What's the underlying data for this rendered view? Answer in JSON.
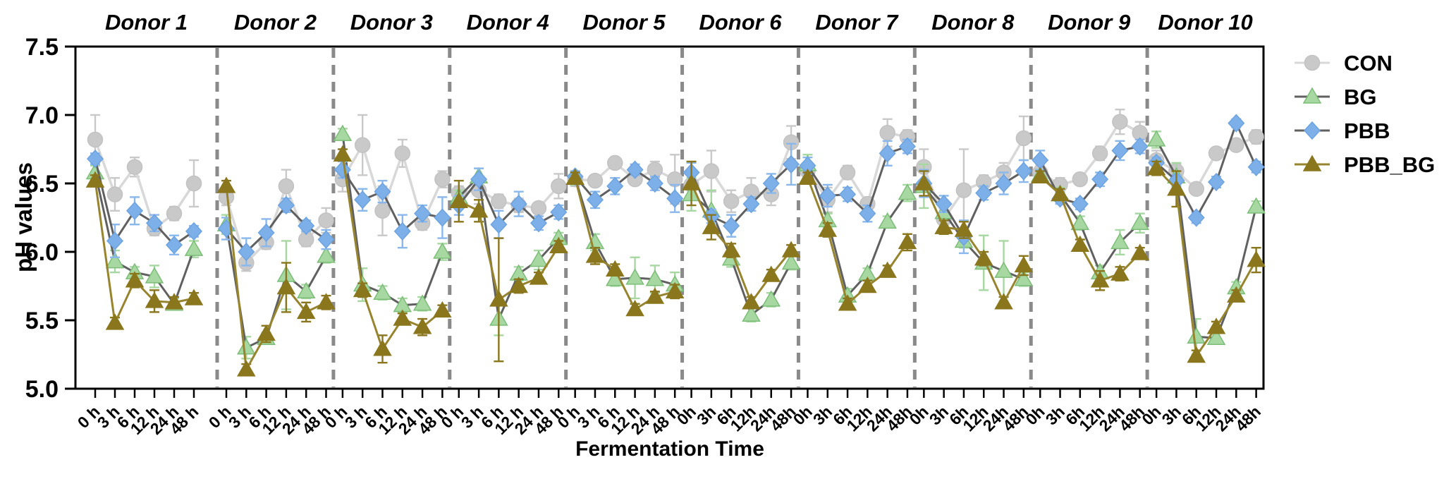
{
  "chart_data": {
    "type": "line",
    "title": "",
    "xlabel": "Fermentation Time",
    "ylabel": "pH values",
    "ylim": [
      5.0,
      7.5
    ],
    "y_ticks": [
      "7.5",
      "7.0",
      "6.5",
      "6.0",
      "5.5",
      "5.0"
    ],
    "grid": false,
    "panel_divider_style": "dashed",
    "legend": {
      "position": "right-top",
      "entries": [
        {
          "label": "CON",
          "marker": "circle",
          "marker_color": "#c9c9c9",
          "marker_edge": "#c2c2c2",
          "line_color": "#d8d8d8",
          "error_color": "#c9c9c9"
        },
        {
          "label": "BG",
          "marker": "triangle",
          "marker_color": "#a7d8a2",
          "marker_edge": "#7cbd78",
          "line_color": "#606060",
          "error_color": "#a7d8a2"
        },
        {
          "label": "PBB",
          "marker": "diamond",
          "marker_color": "#7db0e8",
          "marker_edge": "#6da3e0",
          "line_color": "#606060",
          "error_color": "#8ab8ec"
        },
        {
          "label": "PBB_BG",
          "marker": "triangle",
          "marker_color": "#8a761c",
          "marker_edge": "#8a761c",
          "line_color": "#97842e",
          "error_color": "#8a761c"
        }
      ]
    },
    "panels": [
      {
        "title": "Donor 1",
        "x_labels": [
          "0 h",
          "3 h",
          "6 h",
          "12 h",
          "24 h",
          "48 h"
        ],
        "series": [
          {
            "name": "CON",
            "values": [
              6.82,
              6.42,
              6.62,
              6.17,
              6.28,
              6.5
            ],
            "errors": [
              0.18,
              0.12,
              0.07,
              0.05,
              0.05,
              0.17
            ]
          },
          {
            "name": "BG",
            "values": [
              6.58,
              5.93,
              5.85,
              5.82,
              5.62,
              6.02
            ],
            "errors": [
              0.05,
              0.08,
              0.04,
              0.08,
              0.04,
              0.06
            ]
          },
          {
            "name": "PBB",
            "values": [
              6.68,
              6.08,
              6.3,
              6.21,
              6.05,
              6.15
            ],
            "errors": [
              0.04,
              0.12,
              0.1,
              0.06,
              0.07,
              0.04
            ]
          },
          {
            "name": "PBB_BG",
            "values": [
              6.52,
              5.48,
              5.79,
              5.64,
              5.63,
              5.66
            ],
            "errors": [
              0.04,
              0.04,
              0.05,
              0.08,
              0.04,
              0.04
            ]
          }
        ]
      },
      {
        "title": "Donor 2",
        "x_labels": [
          "0 h",
          "3 h",
          "6 h",
          "12 h",
          "24 h",
          "48 h"
        ],
        "series": [
          {
            "name": "CON",
            "values": [
              6.4,
              5.92,
              6.07,
              6.48,
              6.09,
              6.23
            ],
            "errors": [
              0.06,
              0.06,
              0.05,
              0.12,
              0.05,
              0.09
            ]
          },
          {
            "name": "BG",
            "values": [
              6.2,
              5.3,
              5.37,
              5.83,
              5.71,
              5.97
            ],
            "errors": [
              0.07,
              0.08,
              0.04,
              0.25,
              0.05,
              0.05
            ]
          },
          {
            "name": "PBB",
            "values": [
              6.17,
              6.0,
              6.14,
              6.34,
              6.19,
              6.09
            ],
            "errors": [
              0.08,
              0.1,
              0.1,
              0.05,
              0.04,
              0.07
            ]
          },
          {
            "name": "PBB_BG",
            "values": [
              6.48,
              5.14,
              5.4,
              5.74,
              5.56,
              5.63
            ],
            "errors": [
              0.04,
              0.04,
              0.06,
              0.18,
              0.07,
              0.05
            ]
          }
        ]
      },
      {
        "title": "Donor 3",
        "x_labels": [
          "0 h",
          "3 h",
          "6 h",
          "12 h",
          "24 h",
          "48 h"
        ],
        "series": [
          {
            "name": "CON",
            "values": [
              6.53,
              6.78,
              6.3,
              6.72,
              6.21,
              6.53
            ],
            "errors": [
              0.09,
              0.22,
              0.18,
              0.1,
              0.05,
              0.06
            ]
          },
          {
            "name": "BG",
            "values": [
              6.86,
              5.76,
              5.7,
              5.61,
              5.62,
              6.0
            ],
            "errors": [
              0.04,
              0.12,
              0.05,
              0.05,
              0.05,
              0.06
            ]
          },
          {
            "name": "PBB",
            "values": [
              6.6,
              6.38,
              6.44,
              6.15,
              6.28,
              6.25
            ],
            "errors": [
              0.06,
              0.08,
              0.08,
              0.12,
              0.06,
              0.15
            ]
          },
          {
            "name": "PBB_BG",
            "values": [
              6.71,
              5.72,
              5.29,
              5.51,
              5.45,
              5.57
            ],
            "errors": [
              0.04,
              0.05,
              0.1,
              0.04,
              0.06,
              0.04
            ]
          }
        ]
      },
      {
        "title": "Donor 4",
        "x_labels": [
          "0 h",
          "3 h",
          "6 h",
          "12 h",
          "24 h",
          "48 h"
        ],
        "series": [
          {
            "name": "CON",
            "values": [
              6.43,
              6.45,
              6.37,
              6.34,
              6.32,
              6.48
            ],
            "errors": [
              0.05,
              0.1,
              0.05,
              0.05,
              0.04,
              0.09
            ]
          },
          {
            "name": "BG",
            "values": [
              6.4,
              6.55,
              5.51,
              5.84,
              5.94,
              6.1
            ],
            "errors": [
              0.05,
              0.06,
              0.12,
              0.05,
              0.07,
              0.04
            ]
          },
          {
            "name": "PBB",
            "values": [
              6.34,
              6.53,
              6.2,
              6.35,
              6.21,
              6.29
            ],
            "errors": [
              0.07,
              0.08,
              0.1,
              0.09,
              0.05,
              0.05
            ]
          },
          {
            "name": "PBB_BG",
            "values": [
              6.37,
              6.3,
              5.65,
              5.75,
              5.81,
              6.04
            ],
            "errors": [
              0.15,
              0.08,
              0.45,
              0.05,
              0.04,
              0.04
            ]
          }
        ]
      },
      {
        "title": "Donor 5",
        "x_labels": [
          "0 h",
          "3 h",
          "6 h",
          "12 h",
          "24 h",
          "48 h"
        ],
        "series": [
          {
            "name": "CON",
            "values": [
              6.53,
              6.52,
              6.65,
              6.53,
              6.6,
              6.53
            ],
            "errors": [
              0.05,
              0.04,
              0.04,
              0.04,
              0.06,
              0.18
            ]
          },
          {
            "name": "BG",
            "values": [
              6.54,
              6.07,
              5.8,
              5.81,
              5.8,
              5.76
            ],
            "errors": [
              0.05,
              0.06,
              0.05,
              0.15,
              0.1,
              0.09
            ]
          },
          {
            "name": "PBB",
            "values": [
              6.55,
              6.38,
              6.48,
              6.6,
              6.5,
              6.39
            ],
            "errors": [
              0.04,
              0.06,
              0.06,
              0.04,
              0.05,
              0.1
            ]
          },
          {
            "name": "PBB_BG",
            "values": [
              6.54,
              5.97,
              5.87,
              5.58,
              5.67,
              5.71
            ],
            "errors": [
              0.04,
              0.06,
              0.04,
              0.04,
              0.04,
              0.05
            ]
          }
        ]
      },
      {
        "title": "Donor 6",
        "x_labels": [
          "0h",
          "3h",
          "6h",
          "12h",
          "24h",
          "48h"
        ],
        "series": [
          {
            "name": "CON",
            "values": [
              6.49,
              6.59,
              6.37,
              6.44,
              6.42,
              6.8
            ],
            "errors": [
              0.1,
              0.15,
              0.08,
              0.1,
              0.08,
              0.12
            ]
          },
          {
            "name": "BG",
            "values": [
              6.42,
              6.3,
              5.95,
              5.54,
              5.65,
              5.92
            ],
            "errors": [
              0.12,
              0.15,
              0.06,
              0.05,
              0.05,
              0.05
            ]
          },
          {
            "name": "PBB",
            "values": [
              6.58,
              6.26,
              6.19,
              6.35,
              6.5,
              6.64
            ],
            "errors": [
              0.07,
              0.05,
              0.08,
              0.05,
              0.07,
              0.15
            ]
          },
          {
            "name": "PBB_BG",
            "values": [
              6.5,
              6.18,
              6.01,
              5.63,
              5.83,
              6.01
            ],
            "errors": [
              0.16,
              0.09,
              0.05,
              0.04,
              0.04,
              0.04
            ]
          }
        ]
      },
      {
        "title": "Donor 7",
        "x_labels": [
          "0h",
          "3h",
          "6h",
          "12h",
          "24h",
          "48h"
        ],
        "series": [
          {
            "name": "CON",
            "values": [
              6.59,
              6.38,
              6.58,
              6.35,
              6.87,
              6.84
            ],
            "errors": [
              0.05,
              0.09,
              0.05,
              0.05,
              0.1,
              0.05
            ]
          },
          {
            "name": "BG",
            "values": [
              6.64,
              6.23,
              5.68,
              5.84,
              6.22,
              6.43
            ],
            "errors": [
              0.07,
              0.05,
              0.05,
              0.04,
              0.04,
              0.06
            ]
          },
          {
            "name": "PBB",
            "values": [
              6.63,
              6.41,
              6.42,
              6.28,
              6.72,
              6.77
            ],
            "errors": [
              0.06,
              0.08,
              0.05,
              0.06,
              0.09,
              0.05
            ]
          },
          {
            "name": "PBB_BG",
            "values": [
              6.54,
              6.16,
              5.62,
              5.75,
              5.86,
              6.07
            ],
            "errors": [
              0.04,
              0.05,
              0.04,
              0.04,
              0.04,
              0.06
            ]
          }
        ]
      },
      {
        "title": "Donor 8",
        "x_labels": [
          "0h",
          "3h",
          "6h",
          "12h",
          "24h",
          "48h"
        ],
        "series": [
          {
            "name": "CON",
            "values": [
              6.62,
              6.24,
              6.45,
              6.51,
              6.58,
              6.83
            ],
            "errors": [
              0.13,
              0.05,
              0.3,
              0.05,
              0.07,
              0.16
            ]
          },
          {
            "name": "BG",
            "values": [
              6.48,
              6.29,
              6.08,
              5.92,
              5.86,
              5.8
            ],
            "errors": [
              0.16,
              0.05,
              0.05,
              0.2,
              0.22,
              0.05
            ]
          },
          {
            "name": "PBB",
            "values": [
              6.5,
              6.35,
              6.11,
              6.43,
              6.5,
              6.59
            ],
            "errors": [
              0.1,
              0.06,
              0.12,
              0.05,
              0.08,
              0.08
            ]
          },
          {
            "name": "PBB_BG",
            "values": [
              6.5,
              6.18,
              6.16,
              5.95,
              5.63,
              5.9
            ],
            "errors": [
              0.09,
              0.05,
              0.06,
              0.05,
              0.04,
              0.07
            ]
          }
        ]
      },
      {
        "title": "Donor 9",
        "x_labels": [
          "0h",
          "3h",
          "6h",
          "12h",
          "24h",
          "48h"
        ],
        "series": [
          {
            "name": "CON",
            "values": [
              6.58,
              6.49,
              6.53,
              6.72,
              6.95,
              6.87
            ],
            "errors": [
              0.05,
              0.05,
              0.04,
              0.05,
              0.09,
              0.08
            ]
          },
          {
            "name": "BG",
            "values": [
              6.56,
              6.42,
              6.21,
              5.85,
              6.07,
              6.21
            ],
            "errors": [
              0.04,
              0.05,
              0.05,
              0.05,
              0.09,
              0.07
            ]
          },
          {
            "name": "PBB",
            "values": [
              6.67,
              6.39,
              6.35,
              6.53,
              6.74,
              6.77
            ],
            "errors": [
              0.07,
              0.04,
              0.04,
              0.05,
              0.07,
              0.05
            ]
          },
          {
            "name": "PBB_BG",
            "values": [
              6.55,
              6.42,
              6.05,
              5.79,
              5.84,
              5.99
            ],
            "errors": [
              0.04,
              0.04,
              0.04,
              0.07,
              0.05,
              0.04
            ]
          }
        ]
      },
      {
        "title": "Donor 10",
        "x_labels": [
          "0h",
          "3h",
          "6h",
          "12h",
          "24h",
          "48h"
        ],
        "series": [
          {
            "name": "CON",
            "values": [
              6.67,
              6.59,
              6.46,
              6.72,
              6.78,
              6.84
            ],
            "errors": [
              0.07,
              0.05,
              0.04,
              0.04,
              0.04,
              0.05
            ]
          },
          {
            "name": "BG",
            "values": [
              6.82,
              6.55,
              5.38,
              5.37,
              5.74,
              6.33
            ],
            "errors": [
              0.06,
              0.1,
              0.13,
              0.04,
              0.04,
              0.04
            ]
          },
          {
            "name": "PBB",
            "values": [
              6.65,
              6.52,
              6.25,
              6.51,
              6.94,
              6.62
            ],
            "errors": [
              0.04,
              0.04,
              0.04,
              0.04,
              0.03,
              0.04
            ]
          },
          {
            "name": "PBB_BG",
            "values": [
              6.61,
              6.46,
              5.24,
              5.45,
              5.68,
              5.94
            ],
            "errors": [
              0.05,
              0.13,
              0.04,
              0.04,
              0.04,
              0.09
            ]
          }
        ]
      }
    ]
  }
}
